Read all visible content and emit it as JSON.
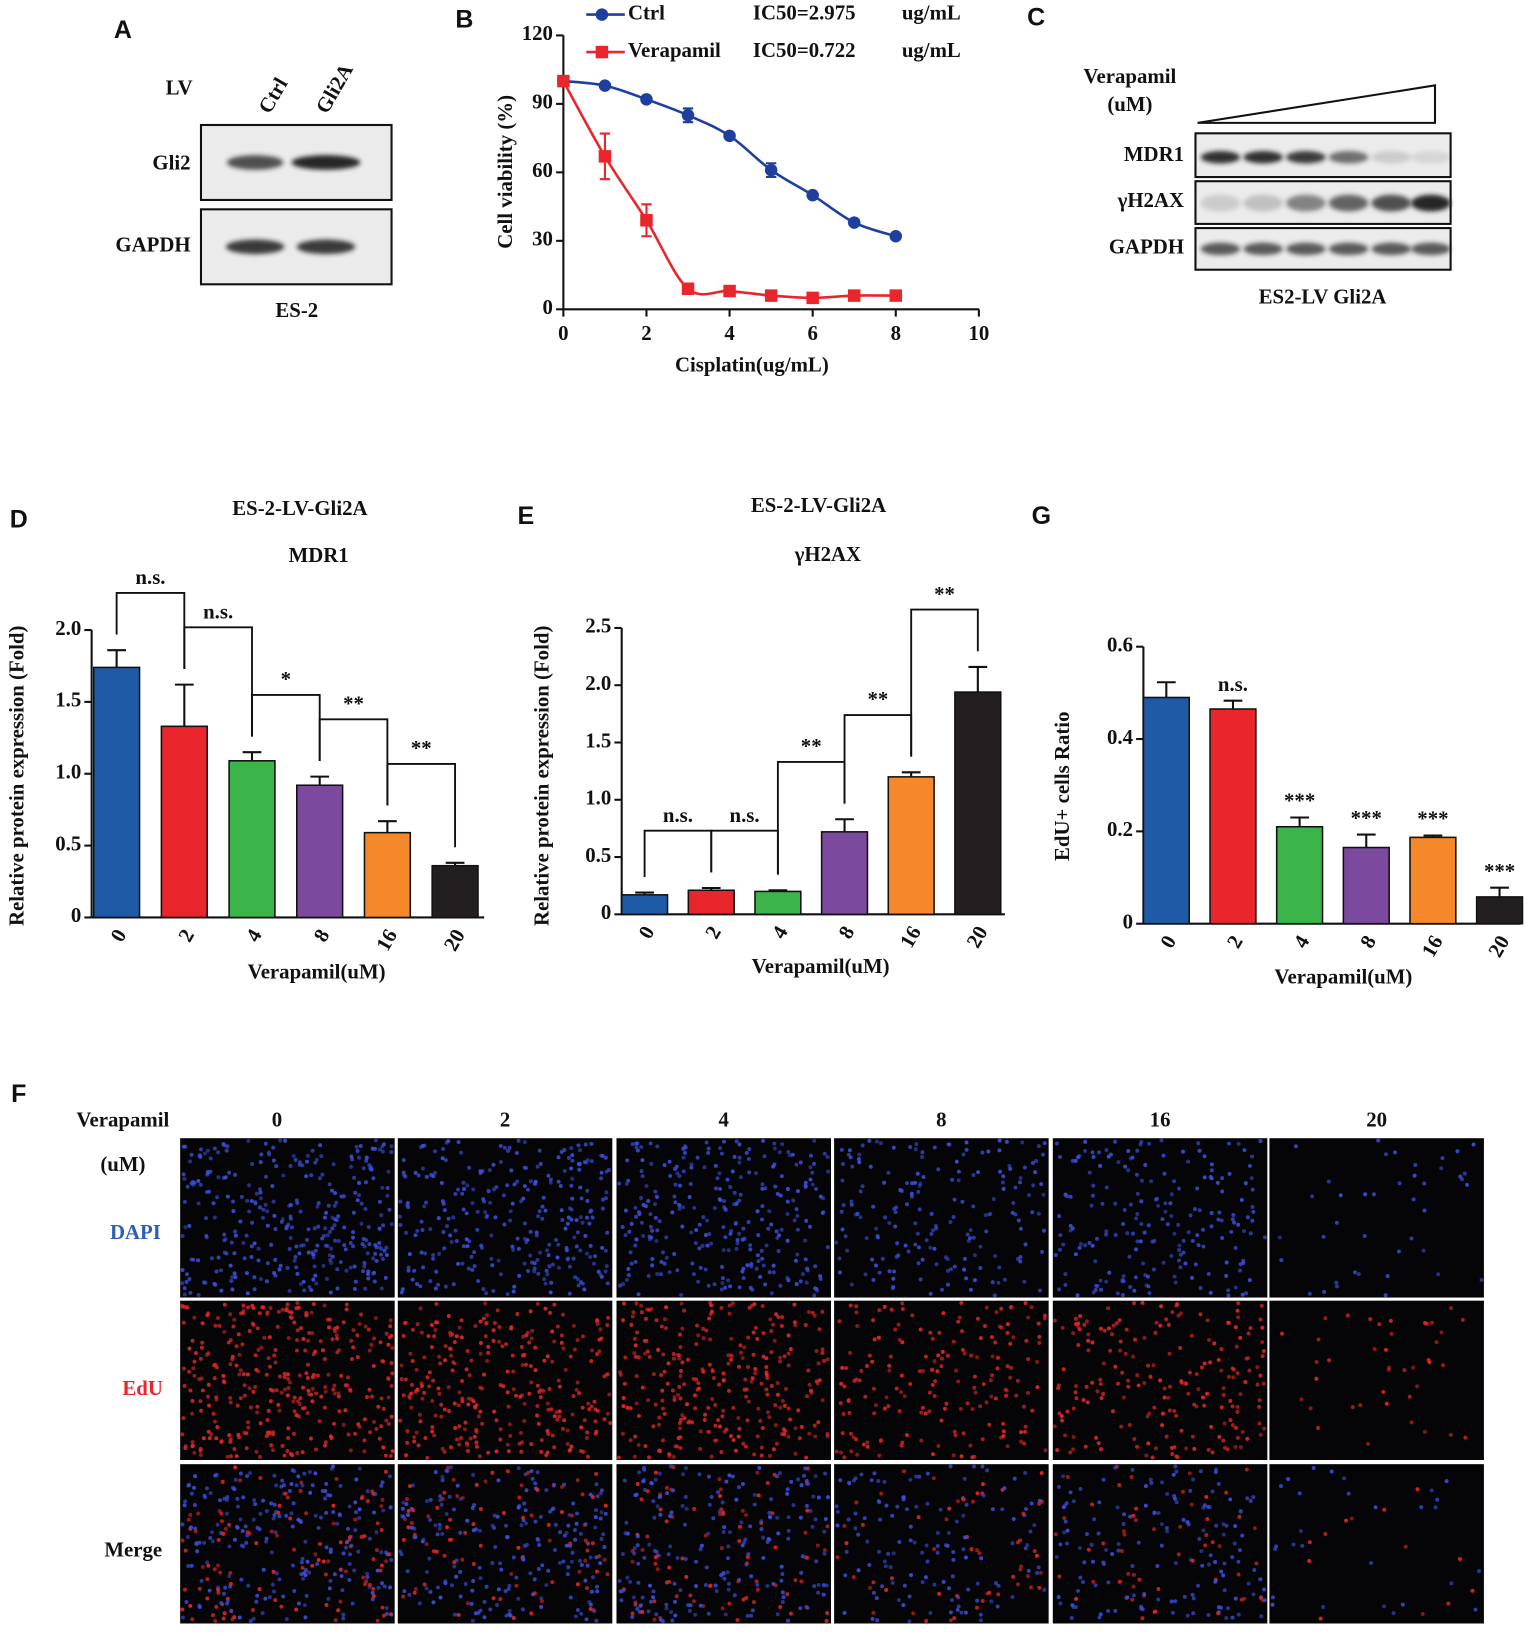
{
  "blot_a": {
    "label": "A",
    "lv": "LV",
    "lanes": [
      "Ctrl",
      "Gli2A"
    ],
    "rows": [
      "Gli2",
      "GAPDH"
    ],
    "caption": "ES-2"
  },
  "blot_c": {
    "label": "C",
    "treatment": [
      "Verapamil",
      "(uM)"
    ],
    "rows": [
      "MDR1",
      "γH2AX",
      "GAPDH"
    ],
    "caption": "ES2-LV Gli2A"
  },
  "edu_images": {
    "label": "F",
    "treatment": [
      "Verapamil",
      "(uM)"
    ],
    "columns": [
      "0",
      "2",
      "4",
      "8",
      "16",
      "20"
    ],
    "rows": [
      "DAPI",
      "EdU",
      "Merge"
    ]
  },
  "chart_data": [
    {
      "type": "line",
      "label": "B",
      "x": [
        0,
        1,
        2,
        3,
        4,
        5,
        6,
        7,
        8
      ],
      "series": [
        {
          "name": "Ctrl",
          "annotation": "IC50=2.975",
          "unit": "ug/mL",
          "color": "#1f3f9e",
          "marker": "circle",
          "values": [
            100,
            98,
            92,
            85,
            76,
            61,
            50,
            38,
            32
          ],
          "errors": [
            0,
            0,
            0,
            3,
            0,
            3,
            0,
            0,
            0
          ]
        },
        {
          "name": "Verapamil",
          "annotation": "IC50=0.722",
          "unit": "ug/mL",
          "color": "#e8262b",
          "marker": "square",
          "values": [
            100,
            67,
            39,
            9,
            8,
            6,
            5,
            6,
            6
          ],
          "errors": [
            0,
            10,
            7,
            0,
            0,
            0,
            0,
            0,
            0
          ]
        }
      ],
      "xlabel": "Cisplatin(ug/mL)",
      "ylabel": "Cell viability (%)",
      "xlim": [
        0,
        10
      ],
      "xticks": [
        0,
        2,
        4,
        6,
        8,
        10
      ],
      "ylim": [
        0,
        120
      ],
      "yticks": [
        0,
        30,
        60,
        90,
        120
      ]
    },
    {
      "type": "bar",
      "label": "D",
      "title": "ES-2-LV-Gli2A",
      "subtitle": "MDR1",
      "categories": [
        "0",
        "2",
        "4",
        "8",
        "16",
        "20"
      ],
      "values": [
        1.74,
        1.33,
        1.09,
        0.92,
        0.59,
        0.36
      ],
      "errors": [
        0.12,
        0.29,
        0.06,
        0.06,
        0.08,
        0.02
      ],
      "colors": [
        "#1f5aa6",
        "#e8262b",
        "#3bb54a",
        "#7b4a9e",
        "#f5882a",
        "#231f20"
      ],
      "comparisons": [
        "n.s.",
        "n.s.",
        "*",
        "**",
        "**"
      ],
      "xlabel": "Verapamil(uM)",
      "ylabel": "Relative protein expression (Fold)",
      "ylim": [
        0,
        2
      ],
      "yticks": [
        0,
        0.5,
        {
          "value": 1,
          "label": "1.0"
        },
        1.5,
        {
          "value": 2,
          "label": "2.0"
        }
      ]
    },
    {
      "type": "bar",
      "label": "E",
      "title": "ES-2-LV-Gli2A",
      "subtitle": "γH2AX",
      "categories": [
        "0",
        "2",
        "4",
        "8",
        "16",
        "20"
      ],
      "values": [
        0.17,
        0.21,
        0.2,
        0.72,
        1.2,
        1.94
      ],
      "errors": [
        0.02,
        0.02,
        0.01,
        0.11,
        0.04,
        0.22
      ],
      "colors": [
        "#1f5aa6",
        "#e8262b",
        "#3bb54a",
        "#7b4a9e",
        "#f5882a",
        "#231f20"
      ],
      "comparisons": [
        "n.s.",
        "n.s.",
        "**",
        "**",
        "**"
      ],
      "xlabel": "Verapamil(uM)",
      "ylabel": "Relative protein expression (Fold)",
      "ylim": [
        0,
        2.5
      ],
      "yticks": [
        0,
        0.5,
        {
          "value": 1,
          "label": "1.0"
        },
        1.5,
        {
          "value": 2,
          "label": "2.0"
        },
        2.5
      ]
    },
    {
      "type": "bar",
      "label": "G",
      "categories": [
        "0",
        "2",
        "4",
        "8",
        "16",
        "20"
      ],
      "values": [
        0.49,
        0.465,
        0.21,
        0.165,
        0.187,
        0.058
      ],
      "errors": [
        0.033,
        0.018,
        0.02,
        0.028,
        0.004,
        0.02
      ],
      "colors": [
        "#1f5aa6",
        "#e8262b",
        "#3bb54a",
        "#7b4a9e",
        "#f5882a",
        "#231f20"
      ],
      "significance": [
        null,
        "n.s.",
        "***",
        "***",
        "***",
        "***"
      ],
      "xlabel": "Verapamil(uM)",
      "ylabel": "EdU+ cells Ratio",
      "ylim": [
        0,
        0.6
      ],
      "yticks": [
        0,
        0.2,
        0.4,
        0.6
      ]
    }
  ]
}
